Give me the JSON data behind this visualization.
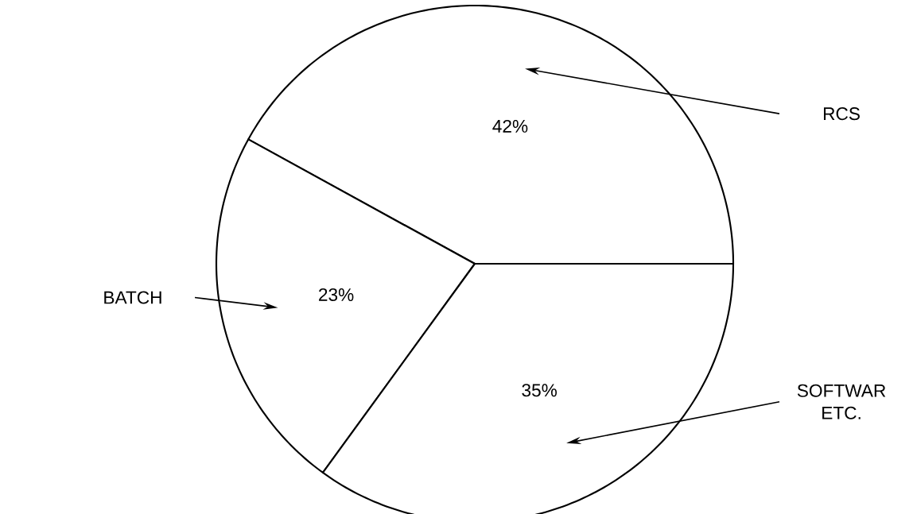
{
  "chart_data": {
    "type": "pie",
    "categories": [
      "RCS",
      "BATCH",
      "SOFTWAR ETC."
    ],
    "values": [
      42,
      23,
      35
    ],
    "colors": [
      "#ffffff",
      "#ffffff",
      "#ffffff"
    ],
    "value_labels": [
      "42%",
      "23%",
      "35%"
    ]
  }
}
